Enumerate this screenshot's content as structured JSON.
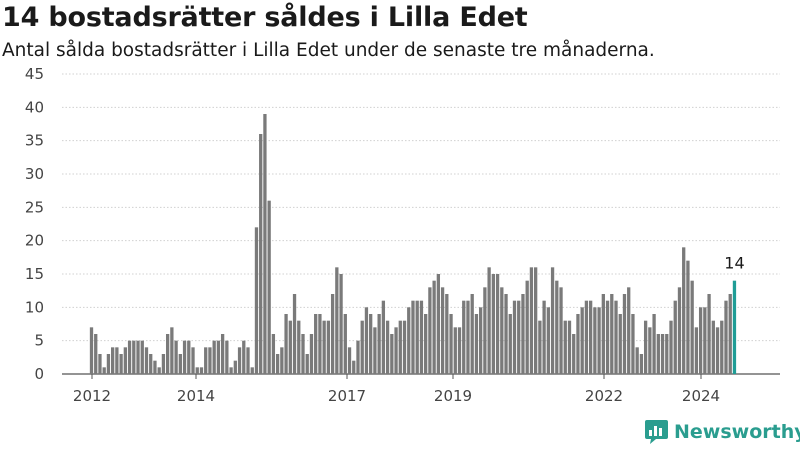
{
  "title": "14 bostadsrätter såldes i Lilla Edet",
  "subtitle": "Antal sålda bostadsrätter i Lilla Edet under de senaste tre månaderna.",
  "brand": {
    "name": "Newsworthy",
    "icon": "newsworthy-logo-icon",
    "color": "#2a9d8f"
  },
  "chart_data": {
    "type": "bar",
    "bar_color": "#7a7a7a",
    "highlight_color": "#1f9d96",
    "ylim": [
      0,
      45
    ],
    "yticks": [
      0,
      5,
      10,
      15,
      20,
      25,
      30,
      35,
      40,
      45
    ],
    "xticks": [
      "2012",
      "2014",
      "2017",
      "2019",
      "2022",
      "2024"
    ],
    "callout": "14",
    "values": [
      7,
      6,
      3,
      1,
      3,
      4,
      4,
      3,
      4,
      5,
      5,
      5,
      5,
      4,
      3,
      2,
      1,
      3,
      6,
      7,
      5,
      3,
      5,
      5,
      4,
      1,
      1,
      4,
      4,
      5,
      5,
      6,
      5,
      1,
      2,
      4,
      5,
      4,
      1,
      22,
      36,
      39,
      26,
      6,
      3,
      4,
      9,
      8,
      12,
      8,
      6,
      3,
      6,
      9,
      9,
      8,
      8,
      12,
      16,
      15,
      9,
      4,
      2,
      5,
      8,
      10,
      9,
      7,
      9,
      11,
      8,
      6,
      7,
      8,
      8,
      10,
      11,
      11,
      11,
      9,
      13,
      14,
      15,
      13,
      12,
      9,
      7,
      7,
      11,
      11,
      12,
      9,
      10,
      13,
      16,
      15,
      15,
      13,
      12,
      9,
      11,
      11,
      12,
      14,
      16,
      16,
      8,
      11,
      10,
      16,
      14,
      13,
      8,
      8,
      6,
      9,
      10,
      11,
      11,
      10,
      10,
      12,
      11,
      12,
      11,
      9,
      12,
      13,
      9,
      4,
      3,
      8,
      7,
      9,
      6,
      6,
      6,
      8,
      11,
      13,
      19,
      17,
      14,
      7,
      10,
      10,
      12,
      8,
      7,
      8,
      11,
      12,
      14
    ]
  }
}
